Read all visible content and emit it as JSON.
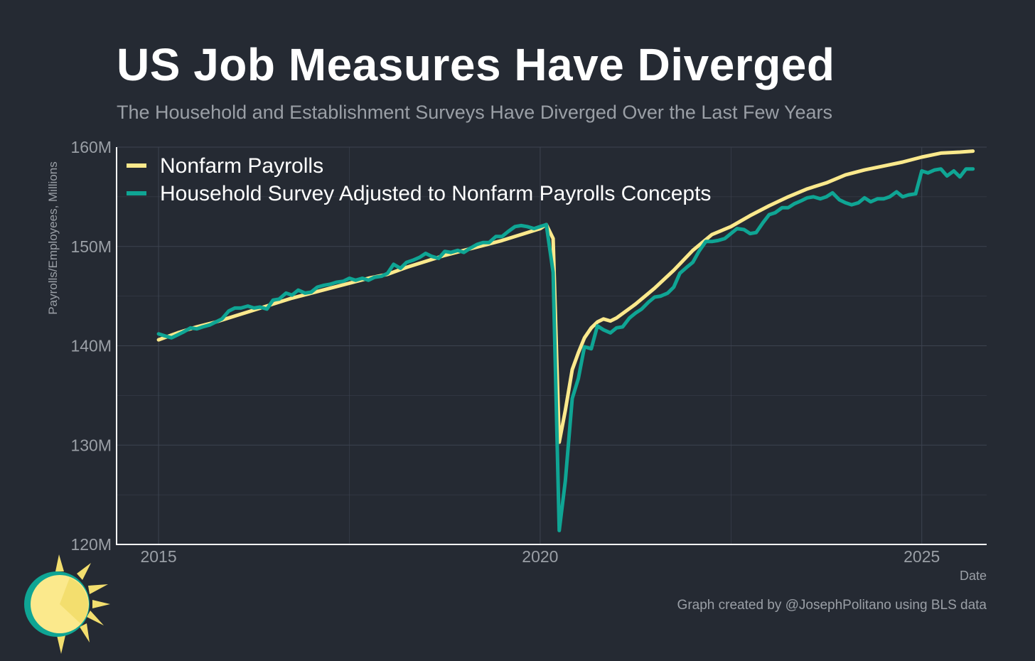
{
  "colors": {
    "background": "#252a33",
    "grid": "#3d4350",
    "axis": "#ffffff",
    "text_muted": "#9a9fa6",
    "nonfarm": "#fbe98c",
    "household": "#0fa594"
  },
  "chart_data": {
    "type": "line",
    "title": "US Job Measures Have Diverged",
    "subtitle": "The Household and Establishment Surveys Have Diverged Over the Last Few Years",
    "xlabel": "Date",
    "ylabel": "Payrolls/Employees, Millions",
    "credit": "Graph created by @JosephPolitano using BLS data",
    "xlim": [
      2014.45,
      2025.85
    ],
    "ylim": [
      120,
      160
    ],
    "x_ticks": [
      {
        "value": 2015,
        "label": "2015"
      },
      {
        "value": 2020,
        "label": "2020"
      },
      {
        "value": 2025,
        "label": "2025"
      }
    ],
    "x_minor_grid": [
      2017.5,
      2022.5
    ],
    "y_ticks": [
      {
        "value": 120,
        "label": "120M"
      },
      {
        "value": 130,
        "label": "130M"
      },
      {
        "value": 140,
        "label": "140M"
      },
      {
        "value": 150,
        "label": "150M"
      },
      {
        "value": 160,
        "label": "160M"
      }
    ],
    "y_minor_grid": [
      125,
      135,
      145,
      155
    ],
    "legend": [
      {
        "name": "Nonfarm Payrolls",
        "color_key": "nonfarm"
      },
      {
        "name": "Household Survey Adjusted to Nonfarm Payrolls Concepts",
        "color_key": "household"
      }
    ],
    "series": [
      {
        "name": "Nonfarm Payrolls",
        "color_key": "nonfarm",
        "points": [
          [
            2015.0,
            140.6
          ],
          [
            2015.25,
            141.3
          ],
          [
            2015.5,
            141.9
          ],
          [
            2015.75,
            142.4
          ],
          [
            2016.0,
            143.0
          ],
          [
            2016.25,
            143.6
          ],
          [
            2016.5,
            144.2
          ],
          [
            2016.75,
            144.8
          ],
          [
            2017.0,
            145.3
          ],
          [
            2017.25,
            145.8
          ],
          [
            2017.5,
            146.3
          ],
          [
            2017.75,
            146.8
          ],
          [
            2018.0,
            147.2
          ],
          [
            2018.25,
            147.9
          ],
          [
            2018.5,
            148.5
          ],
          [
            2018.75,
            149.1
          ],
          [
            2019.0,
            149.6
          ],
          [
            2019.25,
            150.1
          ],
          [
            2019.5,
            150.6
          ],
          [
            2019.75,
            151.2
          ],
          [
            2020.0,
            151.8
          ],
          [
            2020.08,
            152.2
          ],
          [
            2020.17,
            150.8
          ],
          [
            2020.25,
            130.3
          ],
          [
            2020.33,
            133.5
          ],
          [
            2020.42,
            137.6
          ],
          [
            2020.5,
            139.3
          ],
          [
            2020.58,
            140.8
          ],
          [
            2020.67,
            141.8
          ],
          [
            2020.75,
            142.4
          ],
          [
            2020.83,
            142.7
          ],
          [
            2020.92,
            142.5
          ],
          [
            2021.0,
            142.8
          ],
          [
            2021.25,
            144.2
          ],
          [
            2021.5,
            145.8
          ],
          [
            2021.75,
            147.6
          ],
          [
            2022.0,
            149.6
          ],
          [
            2022.25,
            151.2
          ],
          [
            2022.5,
            152.0
          ],
          [
            2022.75,
            153.1
          ],
          [
            2023.0,
            154.1
          ],
          [
            2023.25,
            155.0
          ],
          [
            2023.5,
            155.8
          ],
          [
            2023.75,
            156.4
          ],
          [
            2024.0,
            157.2
          ],
          [
            2024.25,
            157.7
          ],
          [
            2024.5,
            158.1
          ],
          [
            2024.75,
            158.5
          ],
          [
            2025.0,
            159.0
          ],
          [
            2025.25,
            159.4
          ],
          [
            2025.5,
            159.5
          ],
          [
            2025.67,
            159.6
          ]
        ]
      },
      {
        "name": "Household Survey Adjusted to Nonfarm Payrolls Concepts",
        "color_key": "household",
        "points": [
          [
            2015.0,
            141.2
          ],
          [
            2015.08,
            141.0
          ],
          [
            2015.17,
            140.8
          ],
          [
            2015.25,
            141.1
          ],
          [
            2015.33,
            141.4
          ],
          [
            2015.42,
            141.8
          ],
          [
            2015.5,
            141.7
          ],
          [
            2015.58,
            141.9
          ],
          [
            2015.67,
            142.1
          ],
          [
            2015.75,
            142.4
          ],
          [
            2015.83,
            142.7
          ],
          [
            2015.92,
            143.5
          ],
          [
            2016.0,
            143.8
          ],
          [
            2016.08,
            143.8
          ],
          [
            2016.17,
            144.0
          ],
          [
            2016.25,
            143.8
          ],
          [
            2016.33,
            143.9
          ],
          [
            2016.42,
            143.7
          ],
          [
            2016.5,
            144.6
          ],
          [
            2016.58,
            144.7
          ],
          [
            2016.67,
            145.3
          ],
          [
            2016.75,
            145.1
          ],
          [
            2016.83,
            145.6
          ],
          [
            2016.92,
            145.3
          ],
          [
            2017.0,
            145.4
          ],
          [
            2017.08,
            145.9
          ],
          [
            2017.17,
            146.1
          ],
          [
            2017.25,
            146.2
          ],
          [
            2017.33,
            146.4
          ],
          [
            2017.42,
            146.5
          ],
          [
            2017.5,
            146.8
          ],
          [
            2017.58,
            146.6
          ],
          [
            2017.67,
            146.8
          ],
          [
            2017.75,
            146.6
          ],
          [
            2017.83,
            146.9
          ],
          [
            2017.92,
            147.0
          ],
          [
            2018.0,
            147.3
          ],
          [
            2018.08,
            148.2
          ],
          [
            2018.17,
            147.8
          ],
          [
            2018.25,
            148.4
          ],
          [
            2018.33,
            148.6
          ],
          [
            2018.42,
            148.9
          ],
          [
            2018.5,
            149.3
          ],
          [
            2018.58,
            149.0
          ],
          [
            2018.67,
            148.8
          ],
          [
            2018.75,
            149.5
          ],
          [
            2018.83,
            149.4
          ],
          [
            2018.92,
            149.6
          ],
          [
            2019.0,
            149.4
          ],
          [
            2019.08,
            149.8
          ],
          [
            2019.17,
            150.2
          ],
          [
            2019.25,
            150.4
          ],
          [
            2019.33,
            150.4
          ],
          [
            2019.42,
            151.0
          ],
          [
            2019.5,
            151.0
          ],
          [
            2019.58,
            151.5
          ],
          [
            2019.67,
            152.0
          ],
          [
            2019.75,
            152.1
          ],
          [
            2019.83,
            152.0
          ],
          [
            2019.92,
            151.8
          ],
          [
            2020.0,
            152.0
          ],
          [
            2020.08,
            152.2
          ],
          [
            2020.17,
            147.4
          ],
          [
            2020.25,
            121.4
          ],
          [
            2020.33,
            126.4
          ],
          [
            2020.42,
            134.7
          ],
          [
            2020.5,
            136.7
          ],
          [
            2020.58,
            139.9
          ],
          [
            2020.67,
            139.7
          ],
          [
            2020.75,
            142.0
          ],
          [
            2020.83,
            141.6
          ],
          [
            2020.92,
            141.3
          ],
          [
            2021.0,
            141.8
          ],
          [
            2021.08,
            141.9
          ],
          [
            2021.17,
            142.8
          ],
          [
            2021.25,
            143.3
          ],
          [
            2021.33,
            143.7
          ],
          [
            2021.42,
            144.4
          ],
          [
            2021.5,
            144.9
          ],
          [
            2021.58,
            145.0
          ],
          [
            2021.67,
            145.3
          ],
          [
            2021.75,
            145.9
          ],
          [
            2021.83,
            147.3
          ],
          [
            2021.92,
            147.9
          ],
          [
            2022.0,
            148.4
          ],
          [
            2022.08,
            149.5
          ],
          [
            2022.17,
            150.5
          ],
          [
            2022.25,
            150.5
          ],
          [
            2022.33,
            150.6
          ],
          [
            2022.42,
            150.8
          ],
          [
            2022.5,
            151.3
          ],
          [
            2022.58,
            151.8
          ],
          [
            2022.67,
            151.7
          ],
          [
            2022.75,
            151.3
          ],
          [
            2022.83,
            151.4
          ],
          [
            2022.92,
            152.4
          ],
          [
            2023.0,
            153.2
          ],
          [
            2023.08,
            153.4
          ],
          [
            2023.17,
            153.9
          ],
          [
            2023.25,
            153.9
          ],
          [
            2023.33,
            154.3
          ],
          [
            2023.42,
            154.6
          ],
          [
            2023.5,
            154.9
          ],
          [
            2023.58,
            155.0
          ],
          [
            2023.67,
            154.8
          ],
          [
            2023.75,
            155.0
          ],
          [
            2023.83,
            155.4
          ],
          [
            2023.92,
            154.7
          ],
          [
            2024.0,
            154.4
          ],
          [
            2024.08,
            154.2
          ],
          [
            2024.17,
            154.4
          ],
          [
            2024.25,
            154.9
          ],
          [
            2024.33,
            154.5
          ],
          [
            2024.42,
            154.8
          ],
          [
            2024.5,
            154.8
          ],
          [
            2024.58,
            155.0
          ],
          [
            2024.67,
            155.5
          ],
          [
            2024.75,
            155.0
          ],
          [
            2024.83,
            155.2
          ],
          [
            2024.92,
            155.3
          ],
          [
            2025.0,
            157.6
          ],
          [
            2025.08,
            157.4
          ],
          [
            2025.17,
            157.7
          ],
          [
            2025.25,
            157.8
          ],
          [
            2025.33,
            157.1
          ],
          [
            2025.42,
            157.6
          ],
          [
            2025.5,
            157.0
          ],
          [
            2025.58,
            157.8
          ],
          [
            2025.67,
            157.8
          ]
        ]
      }
    ]
  }
}
